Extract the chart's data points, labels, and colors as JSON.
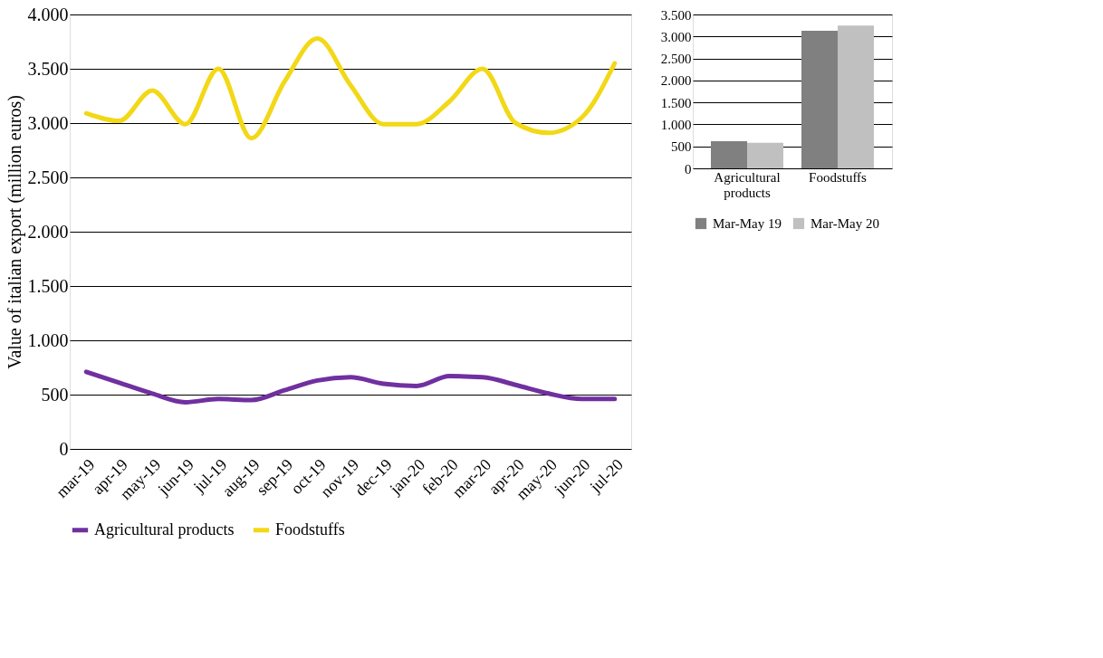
{
  "chart_data": [
    {
      "type": "line",
      "ylabel": "Value of italian export (million euros)",
      "categories": [
        "mar-19",
        "apr-19",
        "may-19",
        "jun-19",
        "jul-19",
        "aug-19",
        "sep-19",
        "oct-19",
        "nov-19",
        "dec-19",
        "jan-20",
        "feb-20",
        "mar-20",
        "apr-20",
        "may-20",
        "jun-20",
        "jul-20"
      ],
      "series": [
        {
          "name": "Agricultural products",
          "color": "#7030a0",
          "values": [
            710,
            610,
            510,
            430,
            460,
            450,
            540,
            630,
            660,
            600,
            580,
            670,
            660,
            590,
            510,
            460,
            460
          ]
        },
        {
          "name": "Foodstuffs",
          "color": "#f2d816",
          "values": [
            3090,
            3020,
            3300,
            2990,
            3500,
            2860,
            3380,
            3780,
            3350,
            2990,
            2990,
            3200,
            3500,
            3000,
            2910,
            3050,
            3550
          ]
        }
      ],
      "ylim": [
        0,
        4000
      ],
      "yticks": [
        0,
        500,
        {
          "value": 1000,
          "label": "1.000"
        },
        {
          "value": 1500,
          "label": "1.500"
        },
        {
          "value": 2000,
          "label": "2.000"
        },
        {
          "value": 2500,
          "label": "2.500"
        },
        {
          "value": 3000,
          "label": "3.000"
        },
        {
          "value": 3500,
          "label": "3.500"
        },
        {
          "value": 4000,
          "label": "4.000"
        }
      ],
      "grid": "y",
      "legend": "bottom",
      "line_style": "solid",
      "marker": "none"
    },
    {
      "type": "bar",
      "categories": [
        "Agricultural products",
        "Foodstuffs"
      ],
      "series": [
        {
          "name": "Mar-May 19",
          "color": "#808080",
          "values": [
            620,
            3130
          ]
        },
        {
          "name": "Mar-May 20",
          "color": "#c0c0c0",
          "values": [
            580,
            3250
          ]
        }
      ],
      "ylim": [
        0,
        3500
      ],
      "yticks": [
        0,
        500,
        {
          "value": 1000,
          "label": "1.000"
        },
        {
          "value": 1500,
          "label": "1.500"
        },
        {
          "value": 2000,
          "label": "2.000"
        },
        {
          "value": 2500,
          "label": "2.500"
        },
        {
          "value": 3000,
          "label": "3.000"
        },
        {
          "value": 3500,
          "label": "3.500"
        }
      ],
      "grid": "y",
      "legend": "bottom"
    }
  ]
}
